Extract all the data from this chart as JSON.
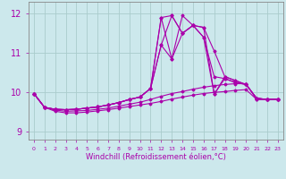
{
  "xlabel": "Windchill (Refroidissement éolien,°C)",
  "bg_color": "#cce8ec",
  "line_color": "#aa00aa",
  "grid_color": "#aacccc",
  "ylim": [
    8.8,
    12.3
  ],
  "xlim": [
    -0.5,
    23.5
  ],
  "ytick_vals": [
    9,
    10,
    11,
    12
  ],
  "curves": [
    [
      9.97,
      9.62,
      9.57,
      9.56,
      9.57,
      9.6,
      9.63,
      9.68,
      9.74,
      9.82,
      9.88,
      10.1,
      11.9,
      11.95,
      11.5,
      11.7,
      11.65,
      11.05,
      10.4,
      10.3,
      10.2,
      9.85,
      9.82,
      9.82
    ],
    [
      9.97,
      9.62,
      9.57,
      9.56,
      9.57,
      9.6,
      9.63,
      9.68,
      9.74,
      9.82,
      9.88,
      10.1,
      11.9,
      10.85,
      11.95,
      11.7,
      11.65,
      9.95,
      10.4,
      10.3,
      10.2,
      9.85,
      9.82,
      9.82
    ],
    [
      9.97,
      9.62,
      9.57,
      9.56,
      9.57,
      9.6,
      9.63,
      9.68,
      9.74,
      9.82,
      9.88,
      10.1,
      11.2,
      11.95,
      11.5,
      11.7,
      11.4,
      10.4,
      10.35,
      10.25,
      10.2,
      9.85,
      9.82,
      9.82
    ],
    [
      9.97,
      9.62,
      9.57,
      9.56,
      9.57,
      9.6,
      9.63,
      9.68,
      9.74,
      9.82,
      9.88,
      10.1,
      11.2,
      10.85,
      11.5,
      11.7,
      11.4,
      9.95,
      10.35,
      10.25,
      10.2,
      9.85,
      9.82,
      9.82
    ],
    [
      9.97,
      9.62,
      9.55,
      9.52,
      9.53,
      9.54,
      9.57,
      9.6,
      9.65,
      9.7,
      9.75,
      9.82,
      9.9,
      9.97,
      10.02,
      10.08,
      10.13,
      10.17,
      10.2,
      10.22,
      10.22,
      9.82,
      9.82,
      9.82
    ],
    [
      9.97,
      9.62,
      9.52,
      9.48,
      9.48,
      9.5,
      9.53,
      9.56,
      9.6,
      9.64,
      9.68,
      9.72,
      9.77,
      9.83,
      9.88,
      9.93,
      9.97,
      10.0,
      10.02,
      10.05,
      10.07,
      9.82,
      9.82,
      9.82
    ]
  ],
  "marker": "D",
  "markersize": 1.5,
  "linewidth": 0.8,
  "xlabel_fontsize": 6,
  "ytick_fontsize": 7,
  "xtick_fontsize": 4.5
}
